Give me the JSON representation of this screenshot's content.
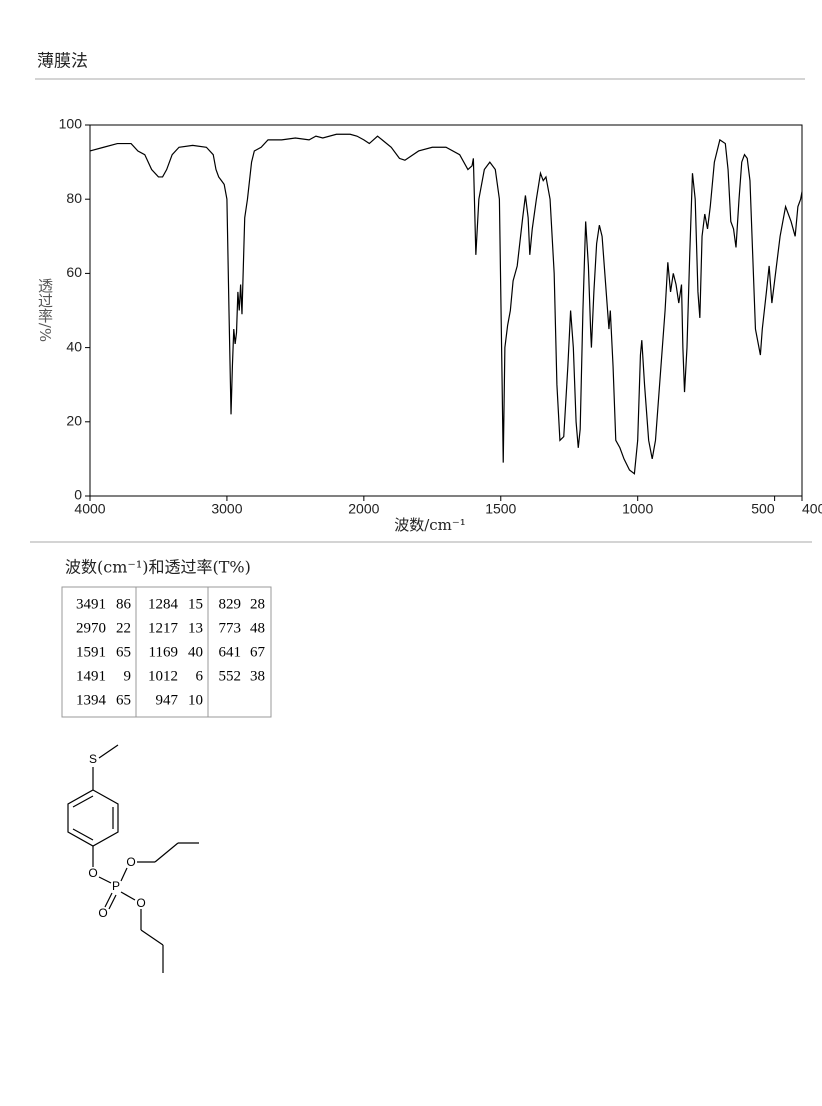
{
  "header": {
    "title": "薄膜法"
  },
  "chart_data": {
    "type": "line",
    "x_label": "波数/cm⁻¹",
    "y_label": "透过率/%",
    "xlim": [
      4000,
      400
    ],
    "xticks": [
      4000,
      3000,
      2000,
      1500,
      1000,
      500,
      400
    ],
    "ylim": [
      0,
      100
    ],
    "yticks": [
      0,
      20,
      40,
      60,
      80,
      100
    ],
    "color": "#000000",
    "x": [
      4000,
      3900,
      3800,
      3700,
      3650,
      3600,
      3550,
      3500,
      3470,
      3440,
      3400,
      3350,
      3250,
      3150,
      3100,
      3080,
      3060,
      3040,
      3020,
      3000,
      2985,
      2970,
      2960,
      2950,
      2940,
      2930,
      2920,
      2910,
      2900,
      2890,
      2880,
      2870,
      2850,
      2820,
      2800,
      2750,
      2700,
      2600,
      2500,
      2400,
      2350,
      2300,
      2200,
      2100,
      2050,
      2000,
      1980,
      1950,
      1900,
      1870,
      1850,
      1800,
      1750,
      1700,
      1650,
      1620,
      1605,
      1600,
      1591,
      1580,
      1560,
      1540,
      1520,
      1505,
      1495,
      1491,
      1485,
      1475,
      1465,
      1455,
      1440,
      1420,
      1410,
      1400,
      1394,
      1385,
      1370,
      1355,
      1345,
      1335,
      1320,
      1305,
      1295,
      1284,
      1270,
      1255,
      1245,
      1235,
      1225,
      1217,
      1210,
      1200,
      1190,
      1180,
      1172,
      1169,
      1160,
      1150,
      1140,
      1130,
      1120,
      1105,
      1100,
      1090,
      1080,
      1065,
      1050,
      1030,
      1012,
      1000,
      990,
      985,
      975,
      960,
      947,
      935,
      920,
      900,
      890,
      880,
      870,
      860,
      850,
      840,
      835,
      829,
      820,
      810,
      800,
      790,
      780,
      773,
      765,
      755,
      745,
      735,
      720,
      700,
      680,
      670,
      660,
      650,
      641,
      630,
      620,
      610,
      600,
      590,
      580,
      570,
      552,
      545,
      530,
      520,
      510,
      500,
      480,
      460,
      440,
      425,
      415,
      405,
      400
    ],
    "values": [
      93,
      94,
      95,
      95,
      93,
      92,
      88,
      86,
      86,
      88,
      92,
      94,
      94.5,
      94,
      92,
      88,
      86,
      85,
      84,
      80,
      50,
      22,
      35,
      45,
      41,
      44,
      55,
      50,
      57,
      49,
      62,
      75,
      80,
      90,
      93,
      94,
      96,
      96,
      96.5,
      96,
      97,
      96.5,
      97.5,
      97.5,
      97,
      96,
      95,
      97,
      94,
      91,
      90.5,
      93,
      94,
      94,
      92,
      88,
      89,
      91,
      65,
      80,
      88,
      90,
      88,
      80,
      30,
      9,
      40,
      46,
      50,
      58,
      62,
      75,
      81,
      75,
      65,
      72,
      80,
      87,
      85,
      86,
      80,
      60,
      30,
      15,
      16,
      35,
      50,
      40,
      20,
      13,
      18,
      50,
      74,
      62,
      45,
      40,
      55,
      68,
      73,
      70,
      60,
      45,
      50,
      35,
      15,
      13,
      10,
      7,
      6,
      15,
      38,
      42,
      30,
      15,
      10,
      15,
      30,
      50,
      63,
      55,
      60,
      57,
      52,
      57,
      40,
      28,
      40,
      65,
      87,
      80,
      55,
      48,
      70,
      76,
      72,
      78,
      90,
      96,
      95,
      88,
      74,
      72,
      67,
      80,
      90,
      92,
      91,
      85,
      65,
      45,
      38,
      45,
      55,
      62,
      52,
      58,
      70,
      78,
      74,
      70,
      78,
      80,
      82
    ]
  },
  "table": {
    "caption": "波数(cm⁻¹)和透过率(T%)",
    "columns": [
      [
        [
          3491,
          86
        ],
        [
          2970,
          22
        ],
        [
          1591,
          65
        ],
        [
          1491,
          9
        ],
        [
          1394,
          65
        ]
      ],
      [
        [
          1284,
          15
        ],
        [
          1217,
          13
        ],
        [
          1169,
          40
        ],
        [
          1012,
          6
        ],
        [
          947,
          10
        ]
      ],
      [
        [
          829,
          28
        ],
        [
          773,
          48
        ],
        [
          641,
          67
        ],
        [
          552,
          38
        ]
      ]
    ]
  },
  "structure": {
    "atoms": [
      "S",
      "O",
      "O",
      "P",
      "O",
      "O"
    ]
  }
}
